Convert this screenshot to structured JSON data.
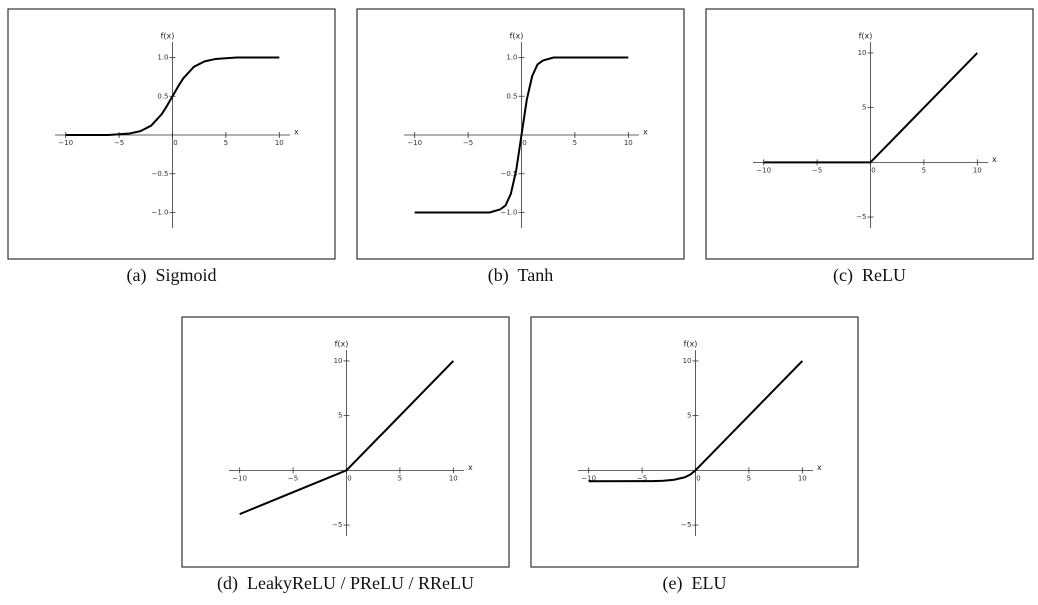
{
  "chart_data": [
    {
      "type": "line",
      "title": "(a)  Sigmoid",
      "xlabel": "x",
      "ylabel": "f(x)",
      "x": [
        -10,
        -8,
        -6,
        -4,
        -3,
        -2,
        -1,
        -0.5,
        0,
        0.5,
        1,
        2,
        3,
        4,
        6,
        8,
        10
      ],
      "values": [
        0,
        0,
        0,
        0.02,
        0.05,
        0.12,
        0.27,
        0.38,
        0.5,
        0.62,
        0.73,
        0.88,
        0.95,
        0.98,
        1,
        1,
        1
      ],
      "color": "#000000",
      "xlim": [
        -11,
        11
      ],
      "ylim": [
        -1.2,
        1.2
      ],
      "xticks": [
        {
          "value": -10,
          "label": "−10"
        },
        {
          "value": -5,
          "label": "−5"
        },
        0,
        5,
        10
      ],
      "yticks": [
        {
          "value": -1,
          "label": "−1.0"
        },
        {
          "value": -0.5,
          "label": "−0.5"
        },
        0.5,
        {
          "value": 1,
          "label": "1.0"
        }
      ]
    },
    {
      "type": "line",
      "title": "(b)  Tanh",
      "xlabel": "x",
      "ylabel": "f(x)",
      "x": [
        -10,
        -4,
        -3,
        -2,
        -1.5,
        -1,
        -0.5,
        0,
        0.5,
        1,
        1.5,
        2,
        3,
        4,
        10
      ],
      "values": [
        -1,
        -1,
        -1,
        -0.96,
        -0.91,
        -0.76,
        -0.46,
        0,
        0.46,
        0.76,
        0.91,
        0.96,
        1,
        1,
        1
      ],
      "color": "#000000",
      "xlim": [
        -11,
        11
      ],
      "ylim": [
        -1.2,
        1.2
      ],
      "xticks": [
        {
          "value": -10,
          "label": "−10"
        },
        {
          "value": -5,
          "label": "−5"
        },
        0,
        5,
        10
      ],
      "yticks": [
        {
          "value": -1,
          "label": "−1.0"
        },
        {
          "value": -0.5,
          "label": "−0.5"
        },
        0.5,
        {
          "value": 1,
          "label": "1.0"
        }
      ]
    },
    {
      "type": "line",
      "title": "(c)  ReLU",
      "xlabel": "x",
      "ylabel": "f(x)",
      "x": [
        -10,
        0,
        10
      ],
      "values": [
        0,
        0,
        10
      ],
      "color": "#000000",
      "xlim": [
        -11,
        11
      ],
      "ylim": [
        -6,
        11
      ],
      "xticks": [
        {
          "value": -10,
          "label": "−10"
        },
        {
          "value": -5,
          "label": "−5"
        },
        0,
        5,
        10
      ],
      "yticks": [
        {
          "value": -5,
          "label": "−5"
        },
        5,
        10
      ]
    },
    {
      "type": "line",
      "title": "(d)  LeakyReLU / PReLU / RReLU",
      "xlabel": "x",
      "ylabel": "f(x)",
      "x": [
        -10,
        0,
        10
      ],
      "values": [
        -4,
        0,
        10
      ],
      "color": "#000000",
      "xlim": [
        -11,
        11
      ],
      "ylim": [
        -6,
        11
      ],
      "xticks": [
        {
          "value": -10,
          "label": "−10"
        },
        {
          "value": -5,
          "label": "−5"
        },
        0,
        5,
        10
      ],
      "yticks": [
        {
          "value": -5,
          "label": "−5"
        },
        5,
        10
      ]
    },
    {
      "type": "line",
      "title": "(e)  ELU",
      "xlabel": "x",
      "ylabel": "f(x)",
      "x": [
        -10,
        -4,
        -3,
        -2,
        -1,
        -0.5,
        0,
        10
      ],
      "values": [
        -1,
        -0.98,
        -0.95,
        -0.86,
        -0.63,
        -0.39,
        0,
        10
      ],
      "color": "#000000",
      "xlim": [
        -11,
        11
      ],
      "ylim": [
        -6,
        11
      ],
      "xticks": [
        {
          "value": -10,
          "label": "−10"
        },
        {
          "value": -5,
          "label": "−5"
        },
        0,
        5,
        10
      ],
      "yticks": [
        {
          "value": -5,
          "label": "−5"
        },
        5,
        10
      ]
    }
  ]
}
